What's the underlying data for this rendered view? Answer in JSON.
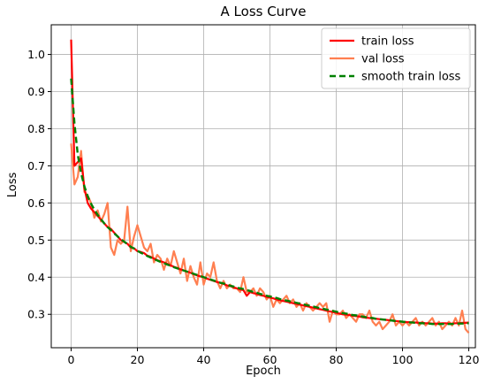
{
  "chart_data": {
    "type": "line",
    "title": "A Loss Curve",
    "xlabel": "Epoch",
    "ylabel": "Loss",
    "xlim": [
      -6,
      122
    ],
    "ylim": [
      0.21,
      1.08
    ],
    "xticks": [
      0,
      20,
      40,
      60,
      80,
      100,
      120
    ],
    "yticks": [
      0.3,
      0.4,
      0.5,
      0.6,
      0.7,
      0.8,
      0.9,
      1.0
    ],
    "xtick_labels": [
      "0",
      "20",
      "40",
      "60",
      "80",
      "100",
      "120"
    ],
    "ytick_labels": [
      "0.3",
      "0.4",
      "0.5",
      "0.6",
      "0.7",
      "0.8",
      "0.9",
      "1.0"
    ],
    "grid": true,
    "legend_position": "top-right",
    "x": [
      0,
      1,
      2,
      3,
      4,
      5,
      6,
      7,
      8,
      9,
      10,
      11,
      12,
      13,
      14,
      15,
      16,
      17,
      18,
      19,
      20,
      21,
      22,
      23,
      24,
      25,
      26,
      27,
      28,
      29,
      30,
      31,
      32,
      33,
      34,
      35,
      36,
      37,
      38,
      39,
      40,
      41,
      42,
      43,
      44,
      45,
      46,
      47,
      48,
      49,
      50,
      51,
      52,
      53,
      54,
      55,
      56,
      57,
      58,
      59,
      60,
      61,
      62,
      63,
      64,
      65,
      66,
      67,
      68,
      69,
      70,
      71,
      72,
      73,
      74,
      75,
      76,
      77,
      78,
      79,
      80,
      81,
      82,
      83,
      84,
      85,
      86,
      87,
      88,
      89,
      90,
      91,
      92,
      93,
      94,
      95,
      96,
      97,
      98,
      99,
      100,
      101,
      102,
      103,
      104,
      105,
      106,
      107,
      108,
      109,
      110,
      111,
      112,
      113,
      114,
      115,
      116,
      117,
      118,
      119,
      120
    ],
    "series": [
      {
        "name": "train loss",
        "color": "#ff0000",
        "style": "solid",
        "values": [
          1.04,
          0.7,
          0.71,
          0.72,
          0.64,
          0.6,
          0.585,
          0.575,
          0.565,
          0.555,
          0.545,
          0.535,
          0.53,
          0.52,
          0.51,
          0.5,
          0.495,
          0.49,
          0.48,
          0.478,
          0.47,
          0.468,
          0.465,
          0.458,
          0.455,
          0.45,
          0.446,
          0.443,
          0.44,
          0.436,
          0.432,
          0.428,
          0.425,
          0.421,
          0.418,
          0.415,
          0.412,
          0.408,
          0.405,
          0.402,
          0.4,
          0.396,
          0.393,
          0.39,
          0.387,
          0.385,
          0.382,
          0.378,
          0.376,
          0.373,
          0.37,
          0.367,
          0.365,
          0.35,
          0.36,
          0.357,
          0.355,
          0.352,
          0.35,
          0.347,
          0.345,
          0.343,
          0.34,
          0.338,
          0.336,
          0.334,
          0.332,
          0.33,
          0.328,
          0.326,
          0.324,
          0.322,
          0.32,
          0.318,
          0.316,
          0.314,
          0.312,
          0.31,
          0.308,
          0.306,
          0.304,
          0.302,
          0.3,
          0.299,
          0.298,
          0.296,
          0.295,
          0.294,
          0.292,
          0.291,
          0.29,
          0.289,
          0.288,
          0.287,
          0.286,
          0.285,
          0.284,
          0.283,
          0.282,
          0.281,
          0.28,
          0.279,
          0.279,
          0.278,
          0.278,
          0.277,
          0.277,
          0.276,
          0.276,
          0.275,
          0.275,
          0.275,
          0.276,
          0.276,
          0.275,
          0.275,
          0.276,
          0.276,
          0.277,
          0.277,
          0.278
        ]
      },
      {
        "name": "val loss",
        "color": "#ff7f50",
        "style": "solid",
        "values": [
          0.76,
          0.65,
          0.67,
          0.74,
          0.63,
          0.62,
          0.6,
          0.56,
          0.58,
          0.55,
          0.57,
          0.6,
          0.48,
          0.46,
          0.5,
          0.49,
          0.5,
          0.59,
          0.47,
          0.51,
          0.54,
          0.51,
          0.48,
          0.47,
          0.49,
          0.44,
          0.46,
          0.45,
          0.42,
          0.45,
          0.43,
          0.47,
          0.44,
          0.41,
          0.45,
          0.39,
          0.43,
          0.4,
          0.38,
          0.44,
          0.38,
          0.41,
          0.4,
          0.44,
          0.39,
          0.37,
          0.39,
          0.37,
          0.38,
          0.37,
          0.37,
          0.36,
          0.4,
          0.36,
          0.36,
          0.37,
          0.35,
          0.37,
          0.36,
          0.34,
          0.35,
          0.32,
          0.34,
          0.33,
          0.34,
          0.35,
          0.33,
          0.34,
          0.32,
          0.33,
          0.31,
          0.33,
          0.32,
          0.31,
          0.32,
          0.33,
          0.32,
          0.33,
          0.28,
          0.31,
          0.3,
          0.3,
          0.31,
          0.29,
          0.3,
          0.29,
          0.28,
          0.3,
          0.3,
          0.29,
          0.31,
          0.28,
          0.27,
          0.28,
          0.26,
          0.27,
          0.28,
          0.3,
          0.27,
          0.28,
          0.27,
          0.28,
          0.27,
          0.28,
          0.29,
          0.27,
          0.28,
          0.27,
          0.28,
          0.29,
          0.27,
          0.28,
          0.26,
          0.27,
          0.28,
          0.27,
          0.29,
          0.27,
          0.31,
          0.26,
          0.25
        ]
      },
      {
        "name": "smooth train loss",
        "color": "#008000",
        "style": "dashed",
        "values": [
          0.935,
          0.815,
          0.73,
          0.68,
          0.645,
          0.618,
          0.598,
          0.582,
          0.568,
          0.556,
          0.545,
          0.535,
          0.527,
          0.518,
          0.51,
          0.502,
          0.496,
          0.489,
          0.482,
          0.477,
          0.471,
          0.466,
          0.462,
          0.457,
          0.453,
          0.449,
          0.445,
          0.441,
          0.438,
          0.434,
          0.431,
          0.427,
          0.424,
          0.421,
          0.418,
          0.415,
          0.412,
          0.409,
          0.406,
          0.403,
          0.4,
          0.397,
          0.394,
          0.391,
          0.388,
          0.385,
          0.383,
          0.38,
          0.377,
          0.375,
          0.372,
          0.37,
          0.368,
          0.365,
          0.363,
          0.36,
          0.358,
          0.355,
          0.353,
          0.35,
          0.348,
          0.346,
          0.344,
          0.341,
          0.339,
          0.337,
          0.335,
          0.333,
          0.331,
          0.329,
          0.327,
          0.325,
          0.323,
          0.321,
          0.319,
          0.317,
          0.315,
          0.313,
          0.311,
          0.309,
          0.307,
          0.305,
          0.303,
          0.302,
          0.3,
          0.298,
          0.297,
          0.295,
          0.294,
          0.292,
          0.291,
          0.29,
          0.288,
          0.287,
          0.286,
          0.285,
          0.284,
          0.283,
          0.282,
          0.281,
          0.28,
          0.279,
          0.278,
          0.278,
          0.277,
          0.276,
          0.276,
          0.275,
          0.275,
          0.274,
          0.274,
          0.274,
          0.274,
          0.274,
          0.274,
          0.274,
          0.275,
          0.275,
          0.275,
          0.276,
          0.276
        ]
      }
    ]
  }
}
